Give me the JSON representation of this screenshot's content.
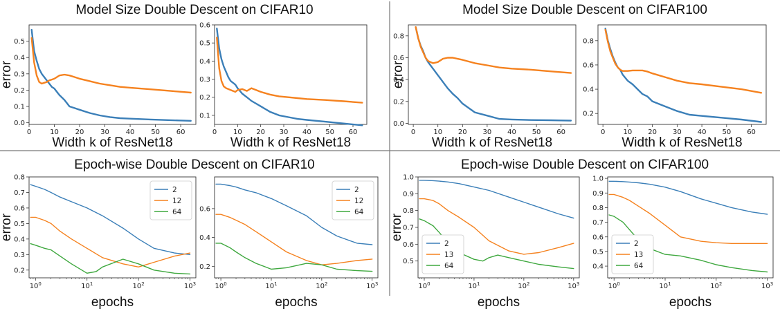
{
  "colors": {
    "blue": "#3b7fb8",
    "orange": "#f5821f",
    "green": "#3fa83f",
    "divider": "#777777"
  },
  "section_titles": [
    "Model Size Double Descent on CIFAR10",
    "Model Size Double Descent on CIFAR100",
    "Epoch-wise Double Descent on CIFAR10",
    "Epoch-wise Double Descent on CIFAR100"
  ],
  "chart_data": [
    {
      "type": "line",
      "id": "ms-c10-a",
      "xlabel": "Width k of ResNet18",
      "ylabel": "error",
      "xlim": [
        0,
        66
      ],
      "ylim": [
        -0.01,
        0.6
      ],
      "xticks": [
        "0",
        "10",
        "20",
        "30",
        "40",
        "50",
        "60"
      ],
      "yticks": [
        "0.0",
        "0.1",
        "0.2",
        "0.3",
        "0.4",
        "0.5"
      ],
      "series": [
        {
          "color": "blue",
          "x": [
            1,
            2,
            3,
            4,
            5,
            6,
            7,
            8,
            9,
            10,
            12,
            14,
            16,
            18,
            20,
            24,
            28,
            32,
            36,
            40,
            48,
            56,
            64
          ],
          "y": [
            0.57,
            0.44,
            0.38,
            0.33,
            0.3,
            0.28,
            0.26,
            0.24,
            0.22,
            0.21,
            0.17,
            0.14,
            0.1,
            0.09,
            0.08,
            0.06,
            0.045,
            0.035,
            0.028,
            0.025,
            0.02,
            0.016,
            0.012
          ]
        },
        {
          "color": "orange",
          "x": [
            1,
            2,
            3,
            4,
            5,
            6,
            7,
            8,
            9,
            10,
            12,
            14,
            16,
            18,
            20,
            24,
            28,
            32,
            36,
            40,
            48,
            56,
            64
          ],
          "y": [
            0.52,
            0.37,
            0.29,
            0.25,
            0.24,
            0.245,
            0.25,
            0.26,
            0.265,
            0.27,
            0.29,
            0.295,
            0.29,
            0.28,
            0.27,
            0.255,
            0.24,
            0.23,
            0.22,
            0.215,
            0.205,
            0.195,
            0.185
          ]
        }
      ]
    },
    {
      "type": "line",
      "id": "ms-c10-b",
      "xlabel": "Width k of ResNet18",
      "ylabel": "",
      "xlim": [
        0,
        66
      ],
      "ylim": [
        0.05,
        0.6
      ],
      "xticks": [
        "0",
        "10",
        "20",
        "30",
        "40",
        "50",
        "60"
      ],
      "yticks": [
        "0.1",
        "0.2",
        "0.3",
        "0.4",
        "0.5",
        "0.6"
      ],
      "series": [
        {
          "color": "blue",
          "x": [
            1,
            2,
            3,
            4,
            5,
            6,
            7,
            8,
            9,
            10,
            12,
            14,
            16,
            18,
            20,
            24,
            28,
            32,
            36,
            40,
            48,
            56,
            64
          ],
          "y": [
            0.58,
            0.47,
            0.41,
            0.37,
            0.34,
            0.31,
            0.29,
            0.28,
            0.27,
            0.25,
            0.22,
            0.2,
            0.18,
            0.165,
            0.15,
            0.12,
            0.1,
            0.09,
            0.08,
            0.075,
            0.065,
            0.055,
            0.045
          ]
        },
        {
          "color": "orange",
          "x": [
            1,
            2,
            3,
            4,
            5,
            6,
            7,
            8,
            9,
            10,
            12,
            14,
            16,
            18,
            20,
            24,
            28,
            32,
            36,
            40,
            48,
            56,
            64
          ],
          "y": [
            0.53,
            0.36,
            0.29,
            0.26,
            0.25,
            0.245,
            0.24,
            0.235,
            0.23,
            0.24,
            0.245,
            0.235,
            0.25,
            0.24,
            0.23,
            0.215,
            0.205,
            0.2,
            0.195,
            0.19,
            0.185,
            0.178,
            0.17
          ]
        }
      ]
    },
    {
      "type": "line",
      "id": "ms-c100-a",
      "xlabel": "Width k of ResNet18",
      "ylabel": "error",
      "xlim": [
        -2,
        66
      ],
      "ylim": [
        -0.01,
        0.9
      ],
      "xticks": [
        "0",
        "10",
        "20",
        "30",
        "40",
        "50",
        "60"
      ],
      "yticks": [
        "0.0",
        "0.2",
        "0.4",
        "0.6",
        "0.8"
      ],
      "series": [
        {
          "color": "blue",
          "x": [
            1,
            2,
            3,
            4,
            5,
            6,
            7,
            8,
            10,
            12,
            14,
            16,
            18,
            20,
            25,
            30,
            35,
            40,
            48,
            56,
            64
          ],
          "y": [
            0.88,
            0.78,
            0.71,
            0.66,
            0.6,
            0.56,
            0.53,
            0.5,
            0.44,
            0.38,
            0.32,
            0.27,
            0.23,
            0.18,
            0.1,
            0.07,
            0.04,
            0.035,
            0.03,
            0.028,
            0.025
          ]
        },
        {
          "color": "orange",
          "x": [
            1,
            2,
            3,
            4,
            5,
            6,
            7,
            8,
            10,
            12,
            14,
            16,
            18,
            20,
            25,
            30,
            35,
            40,
            48,
            56,
            64
          ],
          "y": [
            0.88,
            0.78,
            0.7,
            0.65,
            0.6,
            0.57,
            0.56,
            0.55,
            0.56,
            0.59,
            0.6,
            0.6,
            0.59,
            0.58,
            0.55,
            0.53,
            0.51,
            0.5,
            0.49,
            0.475,
            0.46
          ]
        }
      ]
    },
    {
      "type": "line",
      "id": "ms-c100-b",
      "xlabel": "Width k of ResNet18",
      "ylabel": "",
      "xlim": [
        -2,
        66
      ],
      "ylim": [
        0.11,
        0.93
      ],
      "xticks": [
        "0",
        "10",
        "20",
        "30",
        "40",
        "50",
        "60"
      ],
      "yticks": [
        "0.2",
        "0.4",
        "0.6",
        "0.8"
      ],
      "series": [
        {
          "color": "blue",
          "x": [
            1,
            2,
            3,
            4,
            5,
            6,
            7,
            8,
            10,
            12,
            14,
            16,
            18,
            20,
            25,
            30,
            35,
            40,
            48,
            56,
            64
          ],
          "y": [
            0.9,
            0.8,
            0.73,
            0.67,
            0.62,
            0.58,
            0.56,
            0.52,
            0.47,
            0.44,
            0.4,
            0.36,
            0.34,
            0.3,
            0.26,
            0.22,
            0.19,
            0.18,
            0.165,
            0.15,
            0.13
          ]
        },
        {
          "color": "orange",
          "x": [
            1,
            2,
            3,
            4,
            5,
            6,
            7,
            8,
            10,
            12,
            14,
            16,
            18,
            20,
            25,
            30,
            35,
            40,
            48,
            56,
            64
          ],
          "y": [
            0.89,
            0.79,
            0.71,
            0.66,
            0.61,
            0.58,
            0.56,
            0.55,
            0.55,
            0.555,
            0.555,
            0.555,
            0.545,
            0.53,
            0.5,
            0.47,
            0.45,
            0.44,
            0.42,
            0.4,
            0.37
          ]
        }
      ]
    },
    {
      "type": "line",
      "id": "ew-c10-a",
      "xscale": "log",
      "xlabel": "epochs",
      "ylabel": "error",
      "xlim": [
        0.75,
        1300
      ],
      "ylim": [
        0.15,
        0.8
      ],
      "yticks": [
        "0.2",
        "0.3",
        "0.4",
        "0.5",
        "0.6",
        "0.7",
        "0.8"
      ],
      "legend": [
        "2",
        "12",
        "64"
      ],
      "legend_position": "top-right",
      "series": [
        {
          "name": "2",
          "color": "blue",
          "x": [
            0.8,
            1,
            1.5,
            2,
            3,
            5,
            10,
            20,
            50,
            100,
            200,
            500,
            1000
          ],
          "y": [
            0.75,
            0.74,
            0.72,
            0.7,
            0.67,
            0.64,
            0.6,
            0.55,
            0.47,
            0.4,
            0.34,
            0.31,
            0.3
          ]
        },
        {
          "name": "12",
          "color": "orange",
          "x": [
            0.8,
            1,
            1.5,
            2,
            3,
            5,
            10,
            20,
            50,
            100,
            200,
            500,
            1000
          ],
          "y": [
            0.54,
            0.54,
            0.52,
            0.5,
            0.45,
            0.4,
            0.34,
            0.28,
            0.24,
            0.22,
            0.25,
            0.29,
            0.31
          ]
        },
        {
          "name": "64",
          "color": "green",
          "x": [
            0.8,
            1,
            1.5,
            2,
            3,
            5,
            10,
            15,
            20,
            50,
            100,
            200,
            500,
            1000
          ],
          "y": [
            0.37,
            0.36,
            0.34,
            0.33,
            0.29,
            0.24,
            0.18,
            0.19,
            0.22,
            0.27,
            0.24,
            0.2,
            0.18,
            0.175
          ]
        }
      ]
    },
    {
      "type": "line",
      "id": "ew-c10-b",
      "xscale": "log",
      "xlabel": "epochs",
      "ylabel": "",
      "xlim": [
        0.75,
        1300
      ],
      "ylim": [
        0.12,
        0.82
      ],
      "yticks": [
        "0.2",
        "0.4",
        "0.6"
      ],
      "legend": [
        "2",
        "12",
        "64"
      ],
      "legend_position": "top-right",
      "series": [
        {
          "name": "2",
          "color": "blue",
          "x": [
            0.8,
            1,
            1.5,
            2,
            3,
            5,
            10,
            20,
            50,
            100,
            200,
            500,
            1000
          ],
          "y": [
            0.77,
            0.77,
            0.76,
            0.75,
            0.73,
            0.71,
            0.67,
            0.62,
            0.55,
            0.47,
            0.41,
            0.36,
            0.35
          ]
        },
        {
          "name": "12",
          "color": "orange",
          "x": [
            0.8,
            1,
            1.5,
            2,
            3,
            5,
            10,
            20,
            50,
            100,
            200,
            500,
            1000
          ],
          "y": [
            0.56,
            0.56,
            0.54,
            0.52,
            0.49,
            0.44,
            0.37,
            0.3,
            0.24,
            0.21,
            0.22,
            0.24,
            0.25
          ]
        },
        {
          "name": "64",
          "color": "green",
          "x": [
            0.8,
            1,
            1.5,
            2,
            3,
            5,
            10,
            20,
            50,
            100,
            200,
            500,
            1000
          ],
          "y": [
            0.36,
            0.36,
            0.33,
            0.3,
            0.26,
            0.22,
            0.18,
            0.19,
            0.22,
            0.21,
            0.18,
            0.17,
            0.165
          ]
        }
      ]
    },
    {
      "type": "line",
      "id": "ew-c100-a",
      "xscale": "log",
      "xlabel": "epochs",
      "ylabel": "error",
      "xlim": [
        0.75,
        1300
      ],
      "ylim": [
        0.4,
        1.0
      ],
      "yticks": [
        "0.5",
        "0.6",
        "0.7",
        "0.8",
        "0.9",
        "1.0"
      ],
      "legend": [
        "2",
        "13",
        "64"
      ],
      "legend_position": "bottom-left",
      "series": [
        {
          "name": "2",
          "color": "blue",
          "x": [
            0.8,
            1,
            1.5,
            2,
            3,
            5,
            10,
            20,
            50,
            100,
            200,
            500,
            1000
          ],
          "y": [
            0.98,
            0.98,
            0.978,
            0.975,
            0.97,
            0.96,
            0.94,
            0.92,
            0.88,
            0.85,
            0.82,
            0.78,
            0.755
          ]
        },
        {
          "name": "13",
          "color": "orange",
          "x": [
            0.8,
            1,
            1.5,
            2,
            3,
            5,
            10,
            20,
            50,
            100,
            200,
            500,
            1000
          ],
          "y": [
            0.87,
            0.87,
            0.86,
            0.84,
            0.8,
            0.76,
            0.7,
            0.62,
            0.56,
            0.54,
            0.55,
            0.58,
            0.605
          ]
        },
        {
          "name": "64",
          "color": "green",
          "x": [
            0.8,
            1,
            1.5,
            2,
            3,
            5,
            10,
            15,
            20,
            30,
            50,
            100,
            200,
            500,
            1000
          ],
          "y": [
            0.75,
            0.74,
            0.71,
            0.67,
            0.61,
            0.55,
            0.51,
            0.5,
            0.52,
            0.535,
            0.52,
            0.5,
            0.48,
            0.465,
            0.455
          ]
        }
      ]
    },
    {
      "type": "line",
      "id": "ew-c100-b",
      "xscale": "log",
      "xlabel": "epochs",
      "ylabel": "",
      "xlim": [
        0.75,
        1300
      ],
      "ylim": [
        0.32,
        1.01
      ],
      "yticks": [
        "0.4",
        "0.5",
        "0.6",
        "0.7",
        "0.8",
        "0.9",
        "1.0"
      ],
      "legend": [
        "2",
        "13",
        "64"
      ],
      "legend_position": "bottom-left",
      "series": [
        {
          "name": "2",
          "color": "blue",
          "x": [
            0.8,
            1,
            1.5,
            2,
            3,
            5,
            10,
            20,
            50,
            100,
            200,
            500,
            1000
          ],
          "y": [
            0.98,
            0.98,
            0.978,
            0.975,
            0.97,
            0.96,
            0.94,
            0.91,
            0.86,
            0.83,
            0.8,
            0.77,
            0.755
          ]
        },
        {
          "name": "13",
          "color": "orange",
          "x": [
            0.8,
            1,
            1.5,
            2,
            3,
            5,
            10,
            20,
            50,
            100,
            200,
            500,
            1000
          ],
          "y": [
            0.89,
            0.89,
            0.87,
            0.85,
            0.81,
            0.76,
            0.68,
            0.6,
            0.57,
            0.56,
            0.555,
            0.555,
            0.555
          ]
        },
        {
          "name": "64",
          "color": "green",
          "x": [
            0.8,
            1,
            1.5,
            2,
            3,
            5,
            10,
            20,
            50,
            100,
            200,
            500,
            1000
          ],
          "y": [
            0.75,
            0.74,
            0.7,
            0.65,
            0.58,
            0.52,
            0.48,
            0.47,
            0.44,
            0.41,
            0.39,
            0.37,
            0.36
          ]
        }
      ]
    }
  ]
}
